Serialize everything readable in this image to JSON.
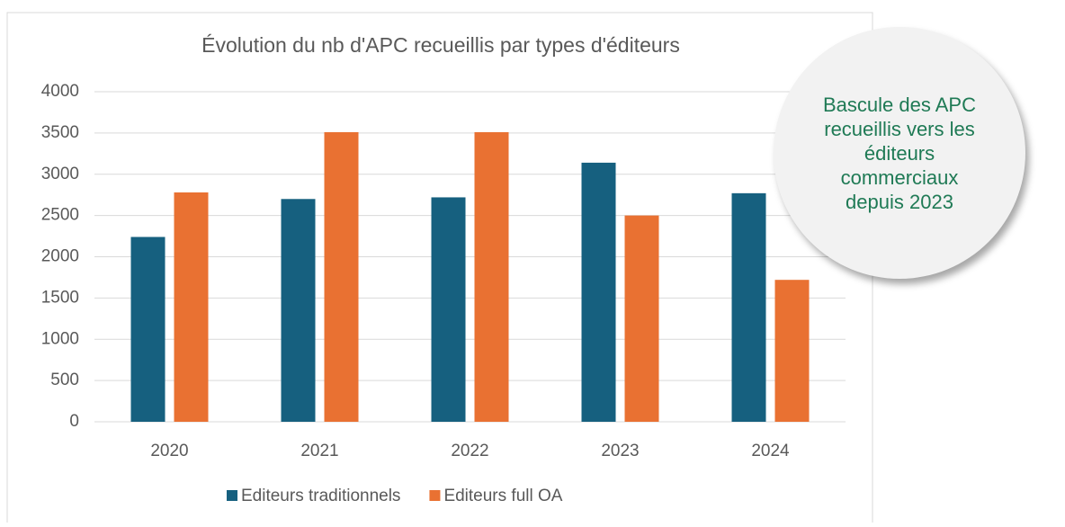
{
  "chart_data": {
    "type": "bar",
    "title": "Évolution du nb d'APC recueillis par types d'éditeurs",
    "categories": [
      "2020",
      "2021",
      "2022",
      "2023",
      "2024"
    ],
    "series": [
      {
        "name": "Editeurs traditionnels",
        "color": "#16607f",
        "values": [
          2240,
          2700,
          2720,
          3140,
          2770
        ]
      },
      {
        "name": "Editeurs full OA",
        "color": "#e97132",
        "values": [
          2780,
          3510,
          3510,
          2500,
          1720
        ]
      }
    ],
    "ylim": [
      0,
      4000
    ],
    "yticks": [
      0,
      500,
      1000,
      1500,
      2000,
      2500,
      3000,
      3500,
      4000
    ],
    "grid": true,
    "legend": "bottom",
    "annotation": "Bascule des APC recueillis vers les éditeurs commerciaux depuis 2023"
  }
}
